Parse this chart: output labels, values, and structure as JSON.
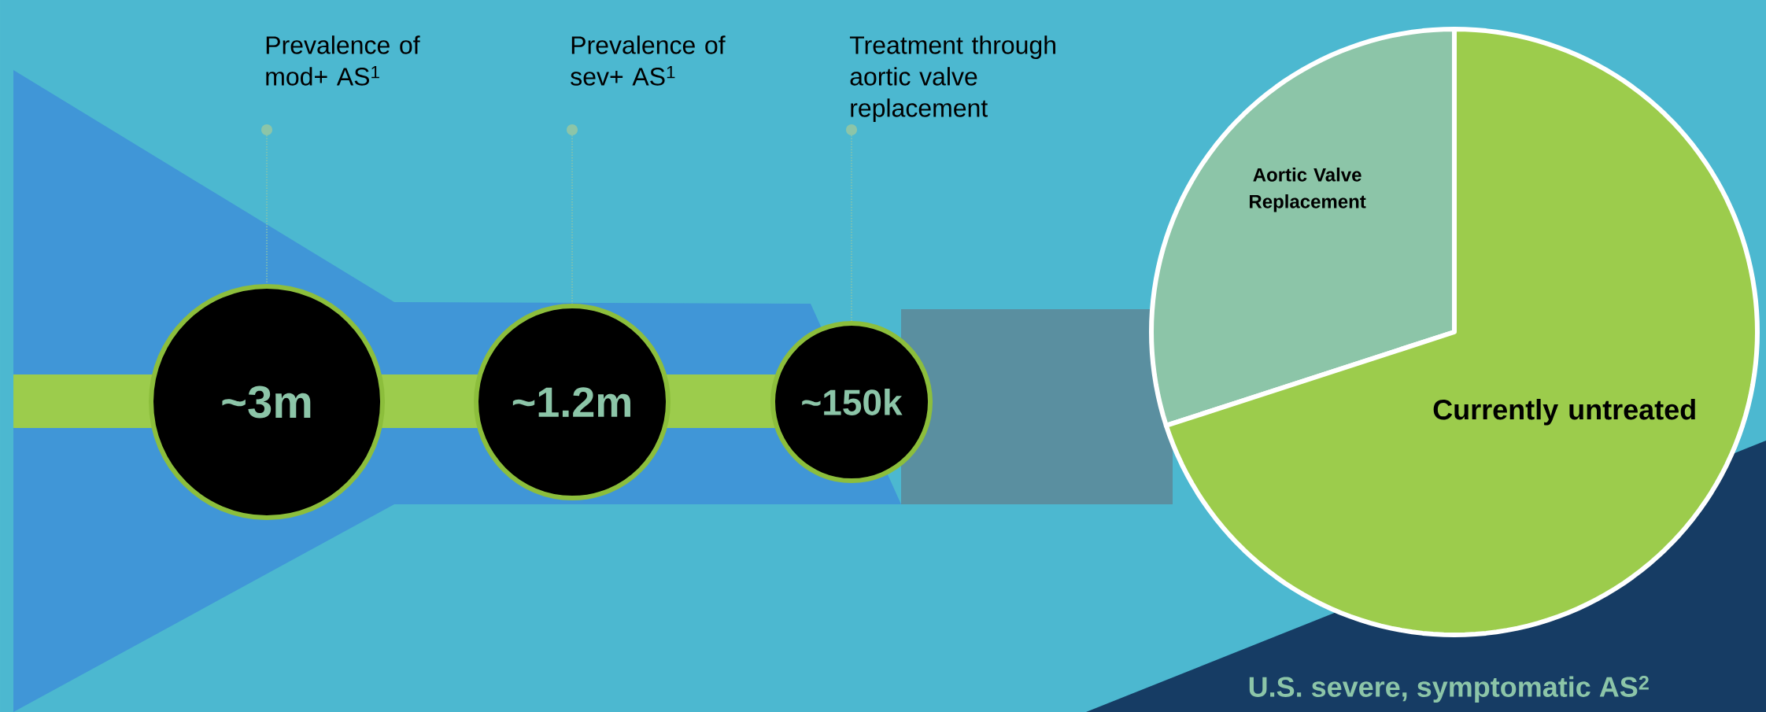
{
  "chart_data": [
    {
      "type": "other",
      "annotations": [
        "Prevalence of mod+ AS$^{1}$",
        "Prevalence of sev+ AS$^{1}$",
        "Treatment through aortic valve replacement",
        "~3m",
        "~1.2m",
        "~150k"
      ]
    },
    {
      "type": "pie",
      "title": "U.S. severe, symptomatic AS$^{2}$",
      "categories": [
        "Aortic Valve Replacement",
        "Currently untreated"
      ],
      "values": [
        30,
        70
      ],
      "colors": [
        "#8cc5a8",
        "#9ccc4c"
      ]
    }
  ]
}
